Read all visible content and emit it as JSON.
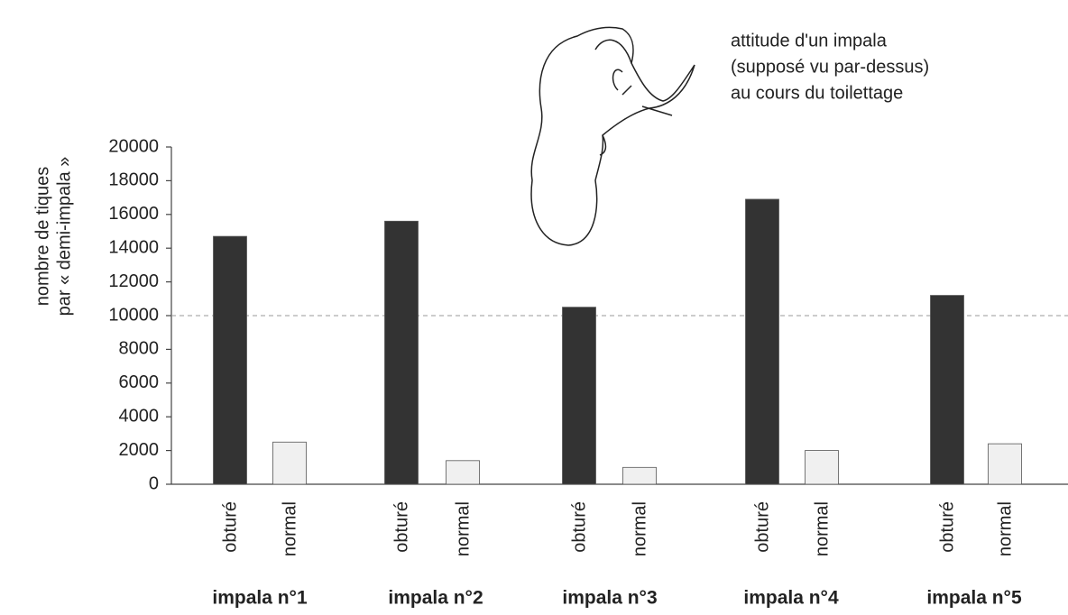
{
  "chart_data": {
    "type": "bar",
    "annotation": [
      "attitude d'un impala",
      "(supposé vu par-dessus)",
      "au cours du toilettage"
    ],
    "ylabel": [
      "nombre de tiques",
      "par « demi-impala »"
    ],
    "categories": [
      "impala n°1",
      "impala n°2",
      "impala n°3",
      "impala n°4",
      "impala n°5"
    ],
    "series": [
      {
        "name": "obturé",
        "color": "#333333",
        "values": [
          14700,
          15600,
          10500,
          16900,
          11200
        ]
      },
      {
        "name": "normal",
        "color": "#f0f0f0",
        "values": [
          2500,
          1400,
          1000,
          2000,
          2400
        ]
      }
    ],
    "reference_line": 10000,
    "ylim": [
      0,
      20000
    ],
    "yticks": [
      0,
      2000,
      4000,
      6000,
      8000,
      10000,
      12000,
      14000,
      16000,
      18000,
      20000
    ]
  }
}
